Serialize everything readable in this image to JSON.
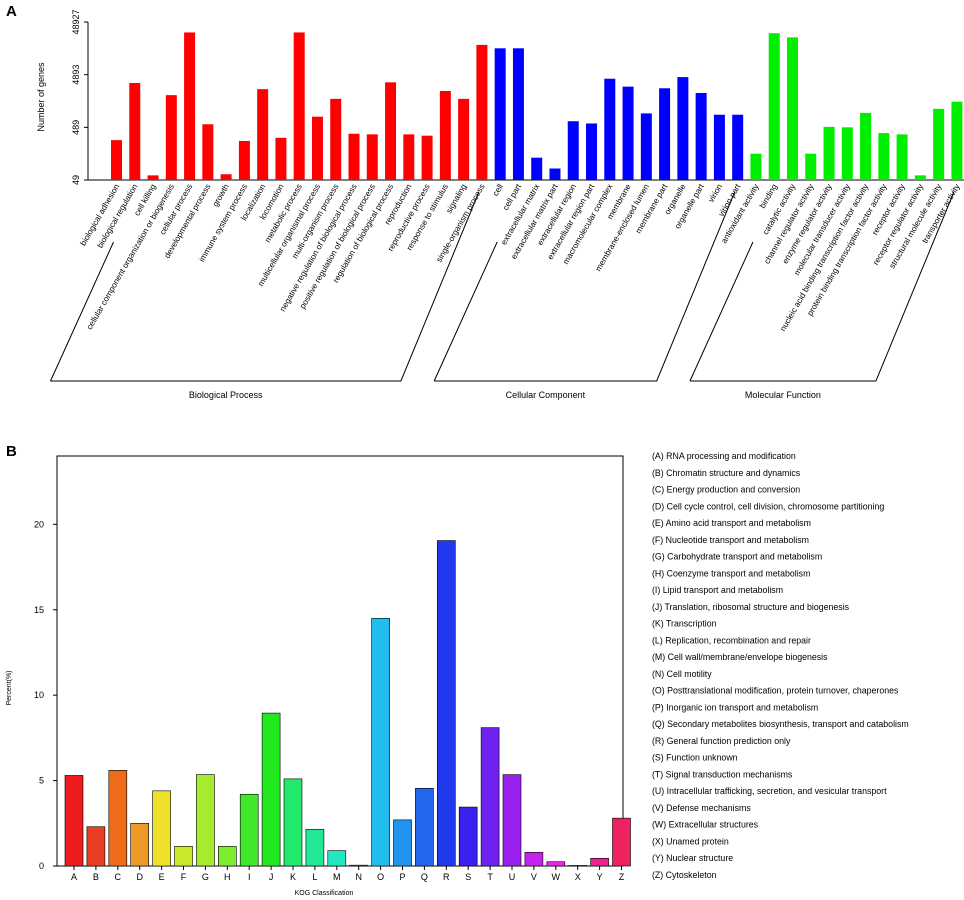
{
  "chart_data": [
    {
      "panel_label": "A",
      "type": "bar",
      "scale": "log",
      "ylabel": "Number of genes",
      "ytick_labels": [
        "49",
        "489",
        "4893",
        "48927"
      ],
      "ylim": [
        49,
        48927
      ],
      "categories": [
        "biological adhesion",
        "biological regulation",
        "cell killing",
        "cellular component organization or biogenesis",
        "cellular process",
        "developmental process",
        "growth",
        "immune system process",
        "localization",
        "locomotion",
        "metabolic process",
        "multicellular organismal process",
        "multi-organism process",
        "negative regulation of biological process",
        "positive regulation of biological process",
        "regulation of biological process",
        "reproduction",
        "reproductive process",
        "response to stimulus",
        "signaling",
        "single-organism process",
        "cell",
        "cell part",
        "extracellular matrix",
        "extracellular matrix part",
        "extracellular region",
        "extracellular region part",
        "macromolecular complex",
        "membrane",
        "membrane-enclosed lumen",
        "membrane part",
        "organelle",
        "organelle part",
        "virion",
        "virion part",
        "antioxidant activity",
        "binding",
        "catalytic activity",
        "channel regulator activity",
        "enzyme regulator activity",
        "molecular transducer activity",
        "nucleic acid binding transcription factor activity",
        "protein binding transcription factor activity",
        "receptor activity",
        "receptor regulator activity",
        "structural molecule activity",
        "transporter activity"
      ],
      "values": [
        280,
        3400,
        60,
        2000,
        31000,
        560,
        63,
        270,
        2600,
        310,
        31000,
        780,
        1700,
        370,
        360,
        3500,
        360,
        340,
        2400,
        1700,
        18000,
        15500,
        15500,
        130,
        81,
        640,
        580,
        4100,
        2900,
        900,
        2700,
        4400,
        2200,
        850,
        850,
        155,
        30000,
        25000,
        155,
        500,
        490,
        920,
        380,
        360,
        60,
        1100,
        1500
      ],
      "colors": [
        "#ff0000",
        "#ff0000",
        "#ff0000",
        "#ff0000",
        "#ff0000",
        "#ff0000",
        "#ff0000",
        "#ff0000",
        "#ff0000",
        "#ff0000",
        "#ff0000",
        "#ff0000",
        "#ff0000",
        "#ff0000",
        "#ff0000",
        "#ff0000",
        "#ff0000",
        "#ff0000",
        "#ff0000",
        "#ff0000",
        "#ff0000",
        "#0000ff",
        "#0000ff",
        "#0000ff",
        "#0000ff",
        "#0000ff",
        "#0000ff",
        "#0000ff",
        "#0000ff",
        "#0000ff",
        "#0000ff",
        "#0000ff",
        "#0000ff",
        "#0000ff",
        "#0000ff",
        "#00ee00",
        "#00ee00",
        "#00ee00",
        "#00ee00",
        "#00ee00",
        "#00ee00",
        "#00ee00",
        "#00ee00",
        "#00ee00",
        "#00ee00",
        "#00ee00",
        "#00ee00"
      ],
      "groups": [
        {
          "name": "Biological Process",
          "first": 0,
          "last": 20
        },
        {
          "name": "Cellular Component",
          "first": 21,
          "last": 34
        },
        {
          "name": "Molecular Function",
          "first": 35,
          "last": 46
        }
      ]
    },
    {
      "panel_label": "B",
      "type": "bar",
      "xlabel": "KOG Classification",
      "ylabel": "Percent(%)",
      "ylim": [
        0,
        24
      ],
      "yticks": [
        0,
        5,
        10,
        15,
        20
      ],
      "categories": [
        "A",
        "B",
        "C",
        "D",
        "E",
        "F",
        "G",
        "H",
        "I",
        "J",
        "K",
        "L",
        "M",
        "N",
        "O",
        "P",
        "Q",
        "R",
        "S",
        "T",
        "U",
        "V",
        "W",
        "X",
        "Y",
        "Z"
      ],
      "values": [
        5.3,
        2.3,
        5.6,
        2.5,
        4.4,
        1.15,
        5.35,
        1.15,
        4.2,
        8.95,
        5.1,
        2.15,
        0.9,
        0.05,
        14.5,
        2.7,
        4.55,
        19.05,
        3.45,
        8.1,
        5.35,
        0.8,
        0.25,
        0.03,
        0.45,
        2.8
      ],
      "colors": [
        "#ee1c1c",
        "#ea3e22",
        "#ee6b1a",
        "#ed9a26",
        "#eee12a",
        "#cce82c",
        "#a6ec2c",
        "#7dec2e",
        "#3fe82b",
        "#22e81e",
        "#22e86c",
        "#22e895",
        "#22e8c2",
        "#22e8ed",
        "#22bcee",
        "#2293ee",
        "#2267ee",
        "#223aee",
        "#3a22ee",
        "#6e22ee",
        "#9b22ee",
        "#c422ee",
        "#ee22ee",
        "#ee22bf",
        "#ee2290",
        "#ee2260"
      ],
      "legend": [
        "(A) RNA processing and modification",
        "(B) Chromatin structure and dynamics",
        "(C) Energy production and conversion",
        "(D) Cell cycle control, cell division, chromosome partitioning",
        "(E) Amino acid transport and metabolism",
        "(F) Nucleotide transport and metabolism",
        "(G) Carbohydrate transport and metabolism",
        "(H) Coenzyme transport and metabolism",
        "(I) Lipid transport and metabolism",
        "(J) Translation, ribosomal structure and biogenesis",
        "(K) Transcription",
        "(L) Replication, recombination and repair",
        "(M) Cell wall/membrane/envelope biogenesis",
        "(N) Cell motility",
        "(O) Posttranslational modification, protein turnover, chaperones",
        "(P) Inorganic ion transport and metabolism",
        "(Q) Secondary metabolites biosynthesis, transport and catabolism",
        "(R) General function prediction only",
        "(S) Function unknown",
        "(T) Signal transduction mechanisms",
        "(U) Intracellular trafficking, secretion, and vesicular transport",
        "(V) Defense mechanisms",
        "(W) Extracellular structures",
        "(X) Unamed protein",
        "(Y) Nuclear structure",
        "(Z) Cytoskeleton"
      ]
    }
  ]
}
